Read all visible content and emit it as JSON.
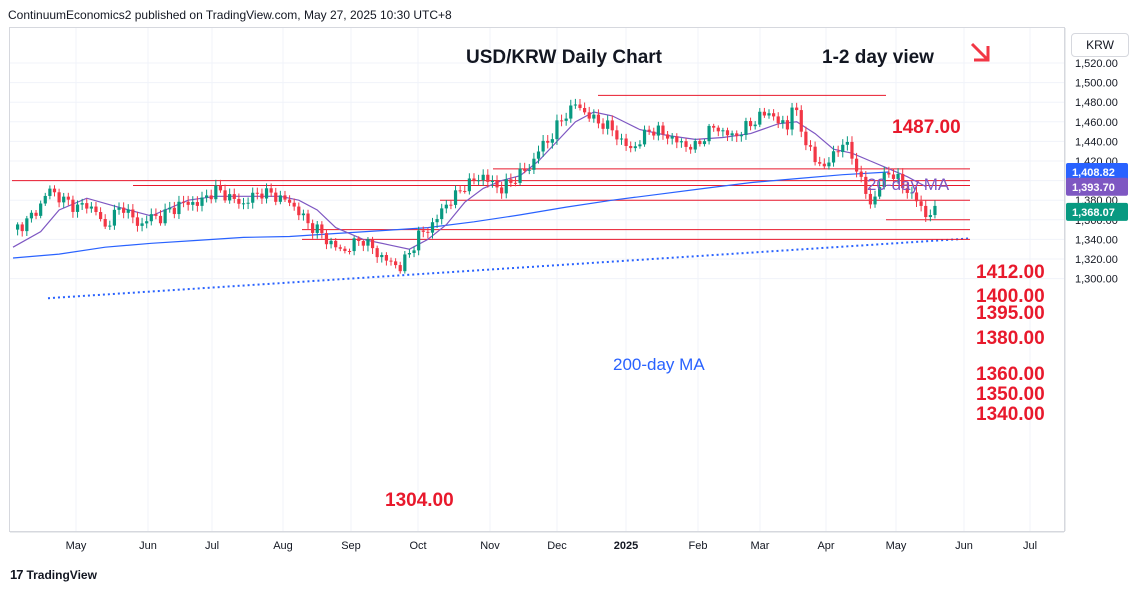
{
  "header": {
    "publisher_line": "ContinuumEconomics2 published on TradingView.com, May 27, 2025 10:30 UTC+8"
  },
  "footer": {
    "brand": "TradingView",
    "logo": "tradingview-logo-icon"
  },
  "currency_button": "KRW",
  "colors": {
    "up": "#089981",
    "down": "#f23645",
    "level": "#e8192c",
    "ma20": "#7e57c2",
    "ma200": "#2962ff",
    "trend": "#2962ff",
    "text": "#131722"
  },
  "chart_data": {
    "type": "candlestick",
    "title": "USD/KRW Daily Chart",
    "view": "1-2 day view",
    "view_icon": "arrow-down-right-icon",
    "y_ticks": [
      "1,520.00",
      "1,500.00",
      "1,480.00",
      "1,460.00",
      "1,440.00",
      "1,420.00",
      "1,400.00",
      "1,380.00",
      "1,360.00",
      "1,340.00",
      "1,320.00",
      "1,300.00"
    ],
    "ylim": [
      1280,
      1530
    ],
    "x_ticks": [
      "May",
      "Jun",
      "Jul",
      "Aug",
      "Sep",
      "Oct",
      "Nov",
      "Dec",
      "2025",
      "Feb",
      "Mar",
      "Apr",
      "May",
      "Jun",
      "Jul"
    ],
    "price_badges": [
      {
        "label": "1,408.82",
        "value": 1408.82,
        "color": "#2962ff"
      },
      {
        "label": "1,393.70",
        "value": 1393.7,
        "color": "#7e57c2"
      },
      {
        "label": "1,368.07",
        "value": 1368.07,
        "color": "#089981"
      }
    ],
    "levels": [
      {
        "label": "1487.00",
        "value": 1487
      },
      {
        "label": "1412.00",
        "value": 1412
      },
      {
        "label": "1400.00",
        "value": 1400
      },
      {
        "label": "1395.00",
        "value": 1395
      },
      {
        "label": "1380.00",
        "value": 1380
      },
      {
        "label": "1360.00",
        "value": 1360
      },
      {
        "label": "1350.00",
        "value": 1350
      },
      {
        "label": "1340.00",
        "value": 1340
      },
      {
        "label": "1304.00",
        "value": 1304
      }
    ],
    "annotations": {
      "ma20": "20-day MA",
      "ma200": "200-day MA"
    },
    "close_series": [
      [
        0,
        1350
      ],
      [
        3,
        1358
      ],
      [
        6,
        1375
      ],
      [
        8,
        1392
      ],
      [
        10,
        1382
      ],
      [
        12,
        1378
      ],
      [
        14,
        1372
      ],
      [
        16,
        1376
      ],
      [
        18,
        1368
      ],
      [
        20,
        1352
      ],
      [
        22,
        1366
      ],
      [
        24,
        1374
      ],
      [
        26,
        1360
      ],
      [
        28,
        1355
      ],
      [
        30,
        1364
      ],
      [
        32,
        1362
      ],
      [
        34,
        1370
      ],
      [
        36,
        1375
      ],
      [
        38,
        1378
      ],
      [
        40,
        1376
      ],
      [
        42,
        1384
      ],
      [
        44,
        1390
      ],
      [
        46,
        1386
      ],
      [
        48,
        1380
      ],
      [
        50,
        1376
      ],
      [
        52,
        1384
      ],
      [
        54,
        1388
      ],
      [
        56,
        1386
      ],
      [
        58,
        1382
      ],
      [
        60,
        1378
      ],
      [
        62,
        1368
      ],
      [
        64,
        1356
      ],
      [
        66,
        1350
      ],
      [
        68,
        1340
      ],
      [
        70,
        1332
      ],
      [
        72,
        1328
      ],
      [
        74,
        1336
      ],
      [
        76,
        1340
      ],
      [
        78,
        1330
      ],
      [
        80,
        1322
      ],
      [
        82,
        1316
      ],
      [
        84,
        1312
      ],
      [
        86,
        1326
      ],
      [
        88,
        1344
      ],
      [
        90,
        1350
      ],
      [
        92,
        1362
      ],
      [
        94,
        1376
      ],
      [
        96,
        1384
      ],
      [
        98,
        1395
      ],
      [
        100,
        1400
      ],
      [
        102,
        1405
      ],
      [
        104,
        1396
      ],
      [
        106,
        1392
      ],
      [
        108,
        1398
      ],
      [
        110,
        1408
      ],
      [
        112,
        1412
      ],
      [
        114,
        1432
      ],
      [
        116,
        1440
      ],
      [
        118,
        1455
      ],
      [
        120,
        1468
      ],
      [
        122,
        1478
      ],
      [
        124,
        1470
      ],
      [
        126,
        1462
      ],
      [
        128,
        1458
      ],
      [
        130,
        1452
      ],
      [
        132,
        1440
      ],
      [
        134,
        1432
      ],
      [
        136,
        1440
      ],
      [
        138,
        1452
      ],
      [
        140,
        1450
      ],
      [
        142,
        1446
      ],
      [
        144,
        1440
      ],
      [
        146,
        1436
      ],
      [
        148,
        1434
      ],
      [
        150,
        1445
      ],
      [
        152,
        1455
      ],
      [
        154,
        1450
      ],
      [
        156,
        1445
      ],
      [
        158,
        1450
      ],
      [
        160,
        1458
      ],
      [
        162,
        1465
      ],
      [
        164,
        1470
      ],
      [
        166,
        1460
      ],
      [
        168,
        1455
      ],
      [
        169,
        1478
      ],
      [
        170,
        1465
      ],
      [
        172,
        1440
      ],
      [
        174,
        1420
      ],
      [
        176,
        1415
      ],
      [
        178,
        1425
      ],
      [
        180,
        1440
      ],
      [
        182,
        1425
      ],
      [
        184,
        1400
      ],
      [
        186,
        1375
      ],
      [
        188,
        1395
      ],
      [
        190,
        1410
      ],
      [
        192,
        1400
      ],
      [
        194,
        1390
      ],
      [
        196,
        1380
      ],
      [
        198,
        1365
      ],
      [
        200,
        1368
      ]
    ],
    "ma20_series": [
      [
        0,
        1332
      ],
      [
        6,
        1348
      ],
      [
        10,
        1370
      ],
      [
        16,
        1382
      ],
      [
        22,
        1374
      ],
      [
        30,
        1364
      ],
      [
        38,
        1380
      ],
      [
        44,
        1384
      ],
      [
        52,
        1384
      ],
      [
        58,
        1384
      ],
      [
        62,
        1380
      ],
      [
        66,
        1370
      ],
      [
        70,
        1352
      ],
      [
        76,
        1340
      ],
      [
        82,
        1334
      ],
      [
        86,
        1330
      ],
      [
        90,
        1340
      ],
      [
        94,
        1355
      ],
      [
        98,
        1378
      ],
      [
        102,
        1392
      ],
      [
        106,
        1400
      ],
      [
        110,
        1405
      ],
      [
        114,
        1420
      ],
      [
        118,
        1440
      ],
      [
        122,
        1460
      ],
      [
        126,
        1470
      ],
      [
        130,
        1466
      ],
      [
        136,
        1452
      ],
      [
        142,
        1446
      ],
      [
        148,
        1442
      ],
      [
        154,
        1444
      ],
      [
        160,
        1448
      ],
      [
        166,
        1458
      ],
      [
        170,
        1460
      ],
      [
        174,
        1448
      ],
      [
        178,
        1432
      ],
      [
        182,
        1428
      ],
      [
        186,
        1420
      ],
      [
        190,
        1412
      ],
      [
        194,
        1404
      ],
      [
        198,
        1394
      ]
    ],
    "ma200_series": [
      [
        0,
        1321
      ],
      [
        10,
        1325
      ],
      [
        20,
        1332
      ],
      [
        30,
        1336
      ],
      [
        40,
        1339
      ],
      [
        50,
        1342
      ],
      [
        60,
        1343
      ],
      [
        70,
        1346
      ],
      [
        80,
        1349
      ],
      [
        90,
        1352
      ],
      [
        100,
        1358
      ],
      [
        110,
        1365
      ],
      [
        120,
        1373
      ],
      [
        130,
        1380
      ],
      [
        140,
        1386
      ],
      [
        150,
        1392
      ],
      [
        160,
        1398
      ],
      [
        170,
        1402
      ],
      [
        180,
        1406
      ],
      [
        190,
        1408.82
      ]
    ],
    "trend_line": {
      "from_value": 1280,
      "to_value": 1341,
      "label": ""
    }
  }
}
